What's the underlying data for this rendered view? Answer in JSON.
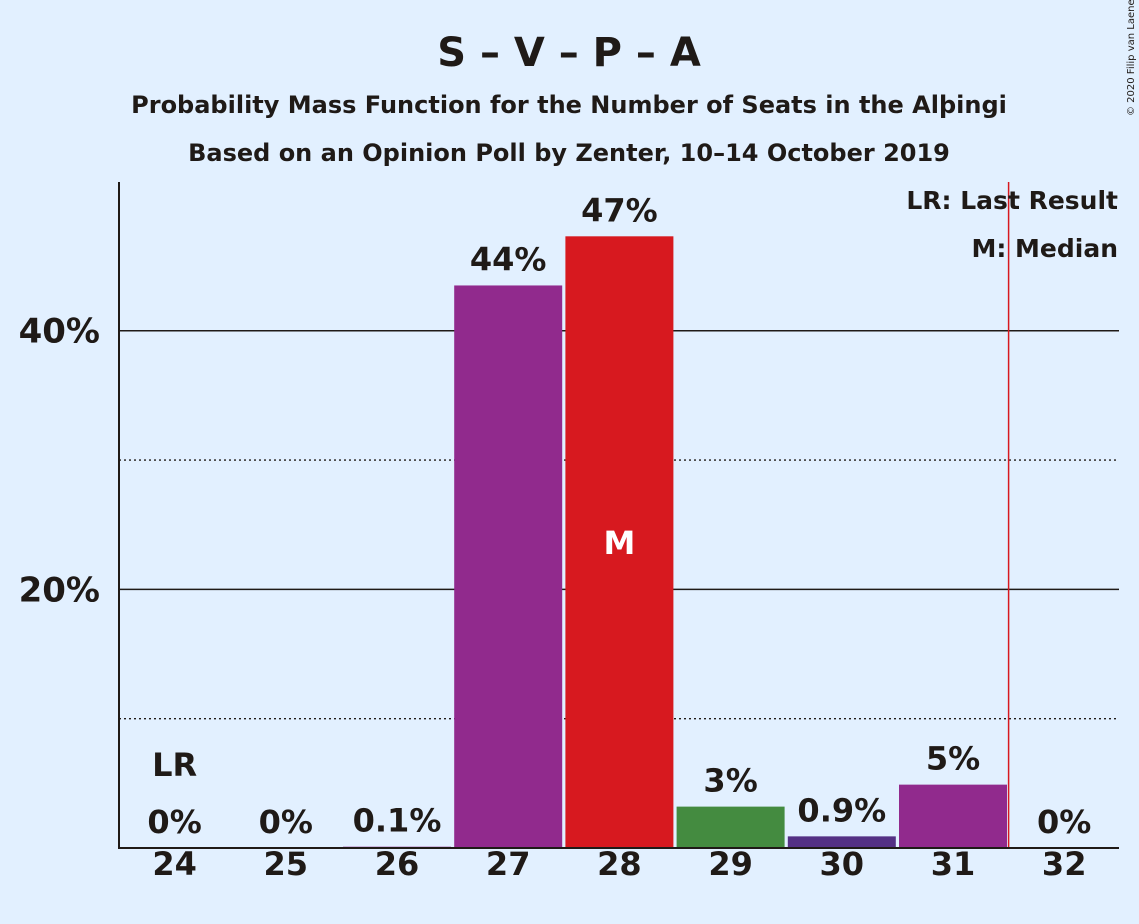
{
  "title": "S – V – P – A",
  "subtitle1": "Probability Mass Function for the Number of Seats in the Alþingi",
  "subtitle2": "Based on an Opinion Poll by Zenter, 10–14 October 2019",
  "copyright": "© 2020 Filip van Laenen",
  "legend": {
    "last_result": "LR: Last Result",
    "median": "M: Median"
  },
  "markers": {
    "last_result": "LR",
    "median": "M"
  },
  "colors": {
    "background": "#e2f0ff",
    "purple": "#912a8d",
    "red": "#d7191f",
    "green": "#448b40",
    "dark_purple": "#543084",
    "last_result_line": "#d7191f"
  },
  "chart_data": {
    "type": "bar",
    "categories": [
      "24",
      "25",
      "26",
      "27",
      "28",
      "29",
      "30",
      "31",
      "32"
    ],
    "values": [
      0,
      0,
      0.1,
      43.5,
      47.3,
      3.2,
      0.9,
      4.9,
      0
    ],
    "labels": [
      "0%",
      "0%",
      "0.1%",
      "44%",
      "47%",
      "3%",
      "0.9%",
      "5%",
      "0%"
    ],
    "bar_colors": [
      "#912a8d",
      "#912a8d",
      "#912a8d",
      "#912a8d",
      "#d7191f",
      "#448b40",
      "#543084",
      "#912a8d",
      "#912a8d"
    ],
    "ylim": [
      0,
      51.5
    ],
    "major_gridlines": [
      20,
      40
    ],
    "minor_gridlines": [
      10,
      30
    ],
    "yticks": [
      {
        "value": 20,
        "label": "20%"
      },
      {
        "value": 40,
        "label": "40%"
      }
    ],
    "last_result": "24",
    "median": "28",
    "last_result_line_after": "31",
    "grid": true,
    "legend_position": "top-right"
  }
}
